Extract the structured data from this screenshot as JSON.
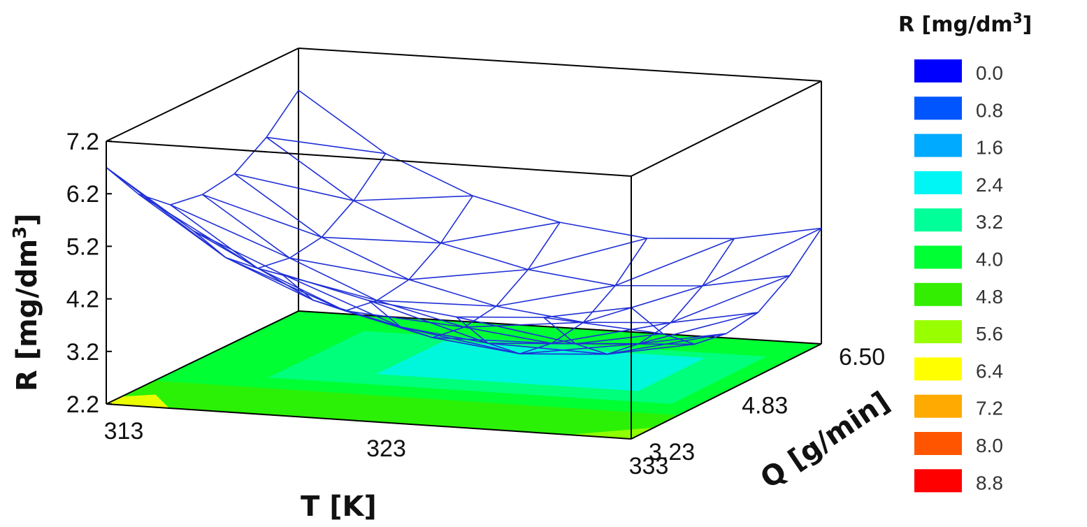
{
  "chart_data": {
    "type": "surface3d",
    "title": "",
    "xlabel": "T [K]",
    "ylabel": "Q [g/min]",
    "zlabel": "R [mg/dm",
    "zlabel_sup": "3",
    "zlabel_end": "]",
    "x_ticks": [
      "313",
      "323",
      "333"
    ],
    "y_ticks": [
      "3.23",
      "4.83",
      "6.50"
    ],
    "z_ticks": [
      "2.2",
      "3.2",
      "4.2",
      "5.2",
      "6.2",
      "7.2"
    ],
    "xlim": [
      313,
      333
    ],
    "ylim": [
      3.23,
      6.5
    ],
    "zlim": [
      2.2,
      7.2
    ],
    "surface_grid": {
      "x": [
        313,
        316.333,
        319.667,
        323,
        326.333,
        329.667,
        333
      ],
      "y": [
        3.23,
        3.775,
        4.32,
        4.865,
        5.41,
        5.955,
        6.5
      ],
      "z": [
        [
          6.7,
          5.6,
          4.9,
          4.5,
          4.3,
          4.4,
          4.7
        ],
        [
          5.9,
          4.8,
          4.1,
          3.7,
          3.5,
          3.6,
          3.9
        ],
        [
          5.4,
          4.3,
          3.6,
          3.2,
          3.0,
          3.1,
          3.4
        ],
        [
          5.3,
          4.2,
          3.5,
          3.1,
          2.9,
          3.0,
          3.3
        ],
        [
          5.4,
          4.3,
          3.6,
          3.2,
          3.0,
          3.1,
          3.4
        ],
        [
          5.8,
          4.7,
          4.0,
          3.6,
          3.4,
          3.5,
          3.8
        ],
        [
          6.4,
          5.3,
          4.6,
          4.2,
          4.0,
          4.1,
          4.4
        ]
      ]
    },
    "legend": {
      "title": "R [mg/dm",
      "title_sup": "3",
      "title_end": "]",
      "placement": "right",
      "entries": [
        {
          "label": "0.0",
          "color": "#0000ff"
        },
        {
          "label": "0.8",
          "color": "#0055ff"
        },
        {
          "label": "1.6",
          "color": "#00aaff"
        },
        {
          "label": "2.4",
          "color": "#00f5f5"
        },
        {
          "label": "3.2",
          "color": "#00ff99"
        },
        {
          "label": "4.0",
          "color": "#00ff33"
        },
        {
          "label": "4.8",
          "color": "#33ee00"
        },
        {
          "label": "5.6",
          "color": "#99ff00"
        },
        {
          "label": "6.4",
          "color": "#ffff00"
        },
        {
          "label": "7.2",
          "color": "#ffaa00"
        },
        {
          "label": "8.0",
          "color": "#ff5500"
        },
        {
          "label": "8.8",
          "color": "#ff0000"
        }
      ]
    },
    "mesh_color": "#1f2fd6"
  }
}
